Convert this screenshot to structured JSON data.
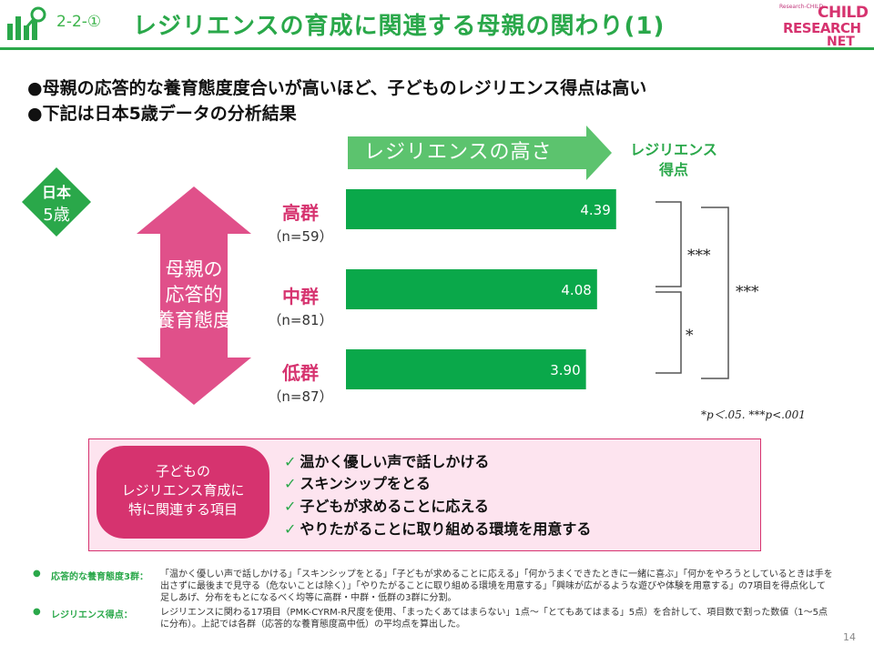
{
  "header": {
    "slide_number": "2-2-①",
    "title": "レジリエンスの育成に関連する母親の関わり(1)",
    "brand": {
      "line1": "CHILD",
      "line2": "RESEARCH",
      "line3": "NET",
      "tagline": "Research-CHILD"
    },
    "icons": [
      "bar-chart-magnifier-icon"
    ]
  },
  "bullets": [
    "●母親の応答的な養育態度度合いが高いほど、子どものレジリエンス得点は高い",
    "●下記は日本5歳データの分析結果"
  ],
  "arrow_label": "レジリエンスの高さ",
  "score_header": [
    "レジリエンス",
    "得点"
  ],
  "badge": {
    "line1": "日本",
    "line2": "5歳"
  },
  "double_arrow_text": [
    "母親の",
    "応答的",
    "養育態度"
  ],
  "groups": [
    {
      "name": "高群",
      "n": "（n=59）"
    },
    {
      "name": "中群",
      "n": "（n=81）"
    },
    {
      "name": "低群",
      "n": "（n=87）"
    }
  ],
  "chart_data": {
    "type": "bar",
    "orientation": "horizontal",
    "categories": [
      "高群",
      "中群",
      "低群"
    ],
    "values": [
      4.39,
      4.08,
      3.9
    ],
    "value_labels": [
      "4.39",
      "4.08",
      "3.90"
    ],
    "significance": [
      {
        "from": "高群",
        "to": "中群",
        "label": "***"
      },
      {
        "from": "中群",
        "to": "低群",
        "label": "*"
      },
      {
        "from": "高群",
        "to": "低群",
        "label": "***"
      }
    ],
    "bar_color": "#0aa84a"
  },
  "sig_note": "*p＜.05. ***p<.001",
  "pink_box": {
    "pill": [
      "子どもの",
      "レジリエンス育成に",
      "特に関連する項目"
    ],
    "items": [
      "温かく優しい声で話しかける",
      "スキンシップをとる",
      "子どもが求めることに応える",
      "やりたがることに取り組める環境を用意する"
    ],
    "check_mark": "✓"
  },
  "footnotes": [
    {
      "bullet": "●",
      "label": "応答的な養育態度3群：",
      "text": "「温かく優しい声で話しかける」「スキンシップをとる」「子どもが求めることに応える」「何かうまくできたときに一緒に喜ぶ」「何かをやろうとしているときは手を出さずに最後まで見守る（危ないことは除く）」「やりたがることに取り組める環境を用意する」「興味が広がるような遊びや体験を用意する」の7項目を得点化して足しあげ、分布をもとになるべく均等に高群・中群・低群の3群に分割。"
    },
    {
      "bullet": "●",
      "label": "レジリエンス得点：",
      "text": "レジリエンスに関わる17項目（PMK-CYRM-R尺度を使用、「まったくあてはまらない」1点〜「とてもあてはまる」5点）を合計して、項目数で割った数値（1〜5点に分布）。上記では各群（応答的な養育態度高中低）の平均点を算出した。"
    }
  ],
  "page_number": "14",
  "colors": {
    "green": "#2aa84a",
    "pink": "#d6336f",
    "pink_light": "#fde4ef",
    "arrow_green": "#5cc36e"
  }
}
